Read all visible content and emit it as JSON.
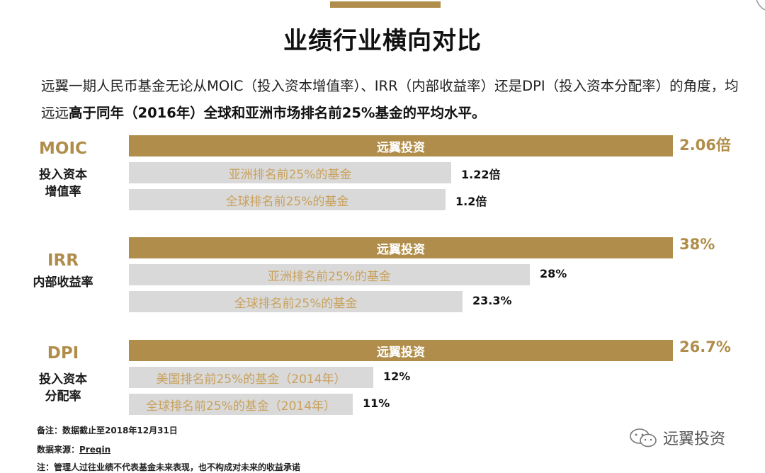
{
  "title": "业绩行业横向对比",
  "intro": {
    "part1": "远翼一期人民币基金无论从MOIC（投入资本增值率）、IRR（内部收益率）还是DPI（投入资本分配率）的角度，均远远",
    "part2": "高于同年（2016年）全球和亚洲市场排名前25%基金的平均水平。"
  },
  "chart_data": {
    "type": "bar",
    "orientation": "horizontal",
    "groups": [
      {
        "name": "MOIC",
        "subtitle": "投入资本\n增值率",
        "bars": [
          {
            "label": "远翼投资",
            "value": 2.06,
            "value_label": "2.06倍",
            "highlight": true
          },
          {
            "label": "亚洲排名前25%的基金",
            "value": 1.22,
            "value_label": "1.22倍",
            "highlight": false
          },
          {
            "label": "全球排名前25%的基金",
            "value": 1.2,
            "value_label": "1.2倍",
            "highlight": false
          }
        ]
      },
      {
        "name": "IRR",
        "subtitle": "内部收益率",
        "bars": [
          {
            "label": "远翼投资",
            "value": 38,
            "value_label": "38%",
            "highlight": true
          },
          {
            "label": "亚洲排名前25%的基金",
            "value": 28,
            "value_label": "28%",
            "highlight": false
          },
          {
            "label": "全球排名前25%的基金",
            "value": 23.3,
            "value_label": "23.3%",
            "highlight": false
          }
        ]
      },
      {
        "name": "DPI",
        "subtitle": "投入资本\n分配率",
        "bars": [
          {
            "label": "远翼投资",
            "value": 26.7,
            "value_label": "26.7%",
            "highlight": true
          },
          {
            "label": "美国排名前25%的基金（2014年）",
            "value": 12,
            "value_label": "12%",
            "highlight": false
          },
          {
            "label": "全球排名前25%的基金（2014年）",
            "value": 11,
            "value_label": "11%",
            "highlight": false
          }
        ]
      }
    ]
  },
  "notes": {
    "note1": "备注：数据截止至2018年12月31日",
    "source_prefix": "数据来源：",
    "source_name": "Preqin",
    "note2": "注：管理人过往业绩不代表基金未来表现，也不构成对未来的收益承诺"
  },
  "watermark": "远翼投资",
  "colors": {
    "gold": "#b08d4a",
    "grey_bar": "#d9d9d9",
    "grey_text": "#c9a15c"
  }
}
